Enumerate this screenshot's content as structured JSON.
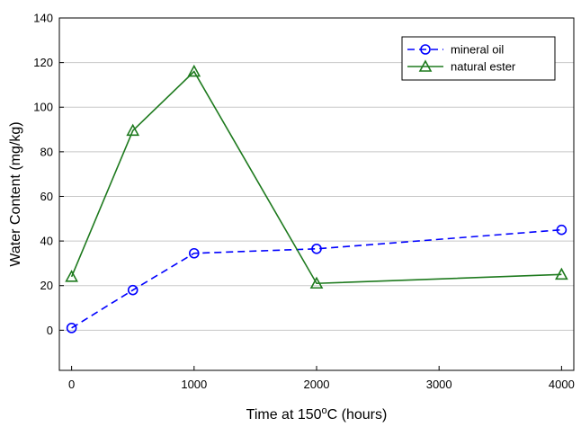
{
  "chart_data": {
    "type": "line",
    "title": "",
    "xlabel": "Time at 150°C (hours)",
    "xlabel_parts": {
      "before": "Time at 150",
      "sup": "o",
      "after": "C (hours)"
    },
    "ylabel": "Water Content (mg/kg)",
    "xlim": [
      -100,
      4100
    ],
    "ylim": [
      -18,
      140
    ],
    "xticks": [
      0,
      1000,
      2000,
      3000,
      4000
    ],
    "yticks": [
      0,
      20,
      40,
      60,
      80,
      100,
      120,
      140
    ],
    "grid": "horizontal",
    "legend_position": "top-right",
    "series": [
      {
        "name": "mineral oil",
        "color": "#0000ff",
        "line_style": "dashed",
        "marker": "circle",
        "x": [
          0,
          500,
          1000,
          2000,
          4000
        ],
        "y": [
          1,
          18,
          34.5,
          36.5,
          45
        ]
      },
      {
        "name": "natural ester",
        "color": "#1e7a1e",
        "line_style": "solid",
        "marker": "triangle",
        "x": [
          0,
          500,
          1000,
          2000,
          4000
        ],
        "y": [
          24,
          89.5,
          116,
          21,
          25
        ]
      }
    ]
  }
}
